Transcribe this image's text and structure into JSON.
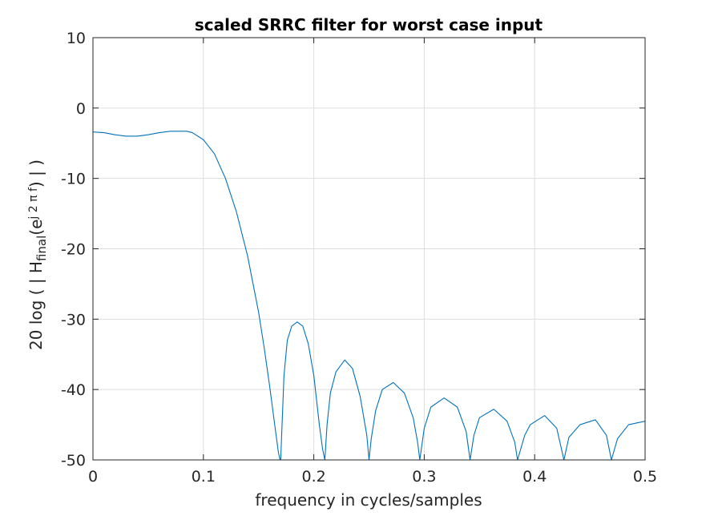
{
  "chart_data": {
    "type": "line",
    "title": "scaled SRRC filter for worst case input",
    "xlabel": "frequency in cycles/samples",
    "ylabel": {
      "prefix": "20  log ( | H",
      "subscript": "final",
      "middle": "(e",
      "superscript": "j 2 π f",
      "suffix": ") | )"
    },
    "xlim": [
      0,
      0.5
    ],
    "ylim": [
      -50,
      10
    ],
    "xticks": [
      0,
      0.1,
      0.2,
      0.3,
      0.4,
      0.5
    ],
    "xtick_labels": [
      "0",
      "0.1",
      "0.2",
      "0.3",
      "0.4",
      "0.5"
    ],
    "yticks": [
      -50,
      -40,
      -30,
      -20,
      -10,
      0,
      10
    ],
    "ytick_labels": [
      "-50",
      "-40",
      "-30",
      "-20",
      "-10",
      "0",
      "10"
    ],
    "grid": true,
    "legend": "none",
    "line_color": "#0072BD",
    "series": [
      {
        "x": [
          0,
          0.01,
          0.02,
          0.03,
          0.04,
          0.05,
          0.06,
          0.07,
          0.08,
          0.085,
          0.09,
          0.1,
          0.11,
          0.12,
          0.13,
          0.14,
          0.15,
          0.155,
          0.16,
          0.165,
          0.168,
          0.1695,
          0.17,
          0.173,
          0.176,
          0.18,
          0.185,
          0.19,
          0.195,
          0.2,
          0.205,
          0.208,
          0.21,
          0.212,
          0.215,
          0.22,
          0.228,
          0.235,
          0.242,
          0.248,
          0.25,
          0.252,
          0.256,
          0.262,
          0.272,
          0.282,
          0.29,
          0.294,
          0.296,
          0.3,
          0.306,
          0.318,
          0.33,
          0.338,
          0.3415,
          0.345,
          0.35,
          0.363,
          0.375,
          0.382,
          0.3845,
          0.391,
          0.396,
          0.409,
          0.42,
          0.4265,
          0.431,
          0.441,
          0.455,
          0.465,
          0.4695,
          0.475,
          0.485,
          0.5
        ],
        "y": [
          -3.4,
          -3.5,
          -3.8,
          -4.0,
          -4.0,
          -3.8,
          -3.5,
          -3.3,
          -3.3,
          -3.3,
          -3.5,
          -4.5,
          -6.5,
          -10.0,
          -14.8,
          -21.0,
          -29.0,
          -34.0,
          -39.5,
          -45.5,
          -49.0,
          -50.0,
          -50.0,
          -38.0,
          -33.0,
          -31.0,
          -30.4,
          -31.0,
          -33.5,
          -38.0,
          -45.0,
          -48.5,
          -50.0,
          -45.0,
          -40.5,
          -37.5,
          -35.8,
          -37.0,
          -41.0,
          -46.5,
          -50.0,
          -47.0,
          -43.0,
          -40.0,
          -39.0,
          -40.5,
          -44.0,
          -47.5,
          -50.0,
          -45.5,
          -42.5,
          -41.2,
          -42.5,
          -46.0,
          -50.0,
          -46.5,
          -44.0,
          -42.8,
          -44.5,
          -47.5,
          -50.0,
          -46.5,
          -45.0,
          -43.7,
          -45.5,
          -50.0,
          -46.8,
          -45.0,
          -44.3,
          -46.5,
          -50.0,
          -47.0,
          -45.0,
          -44.5
        ]
      }
    ]
  }
}
